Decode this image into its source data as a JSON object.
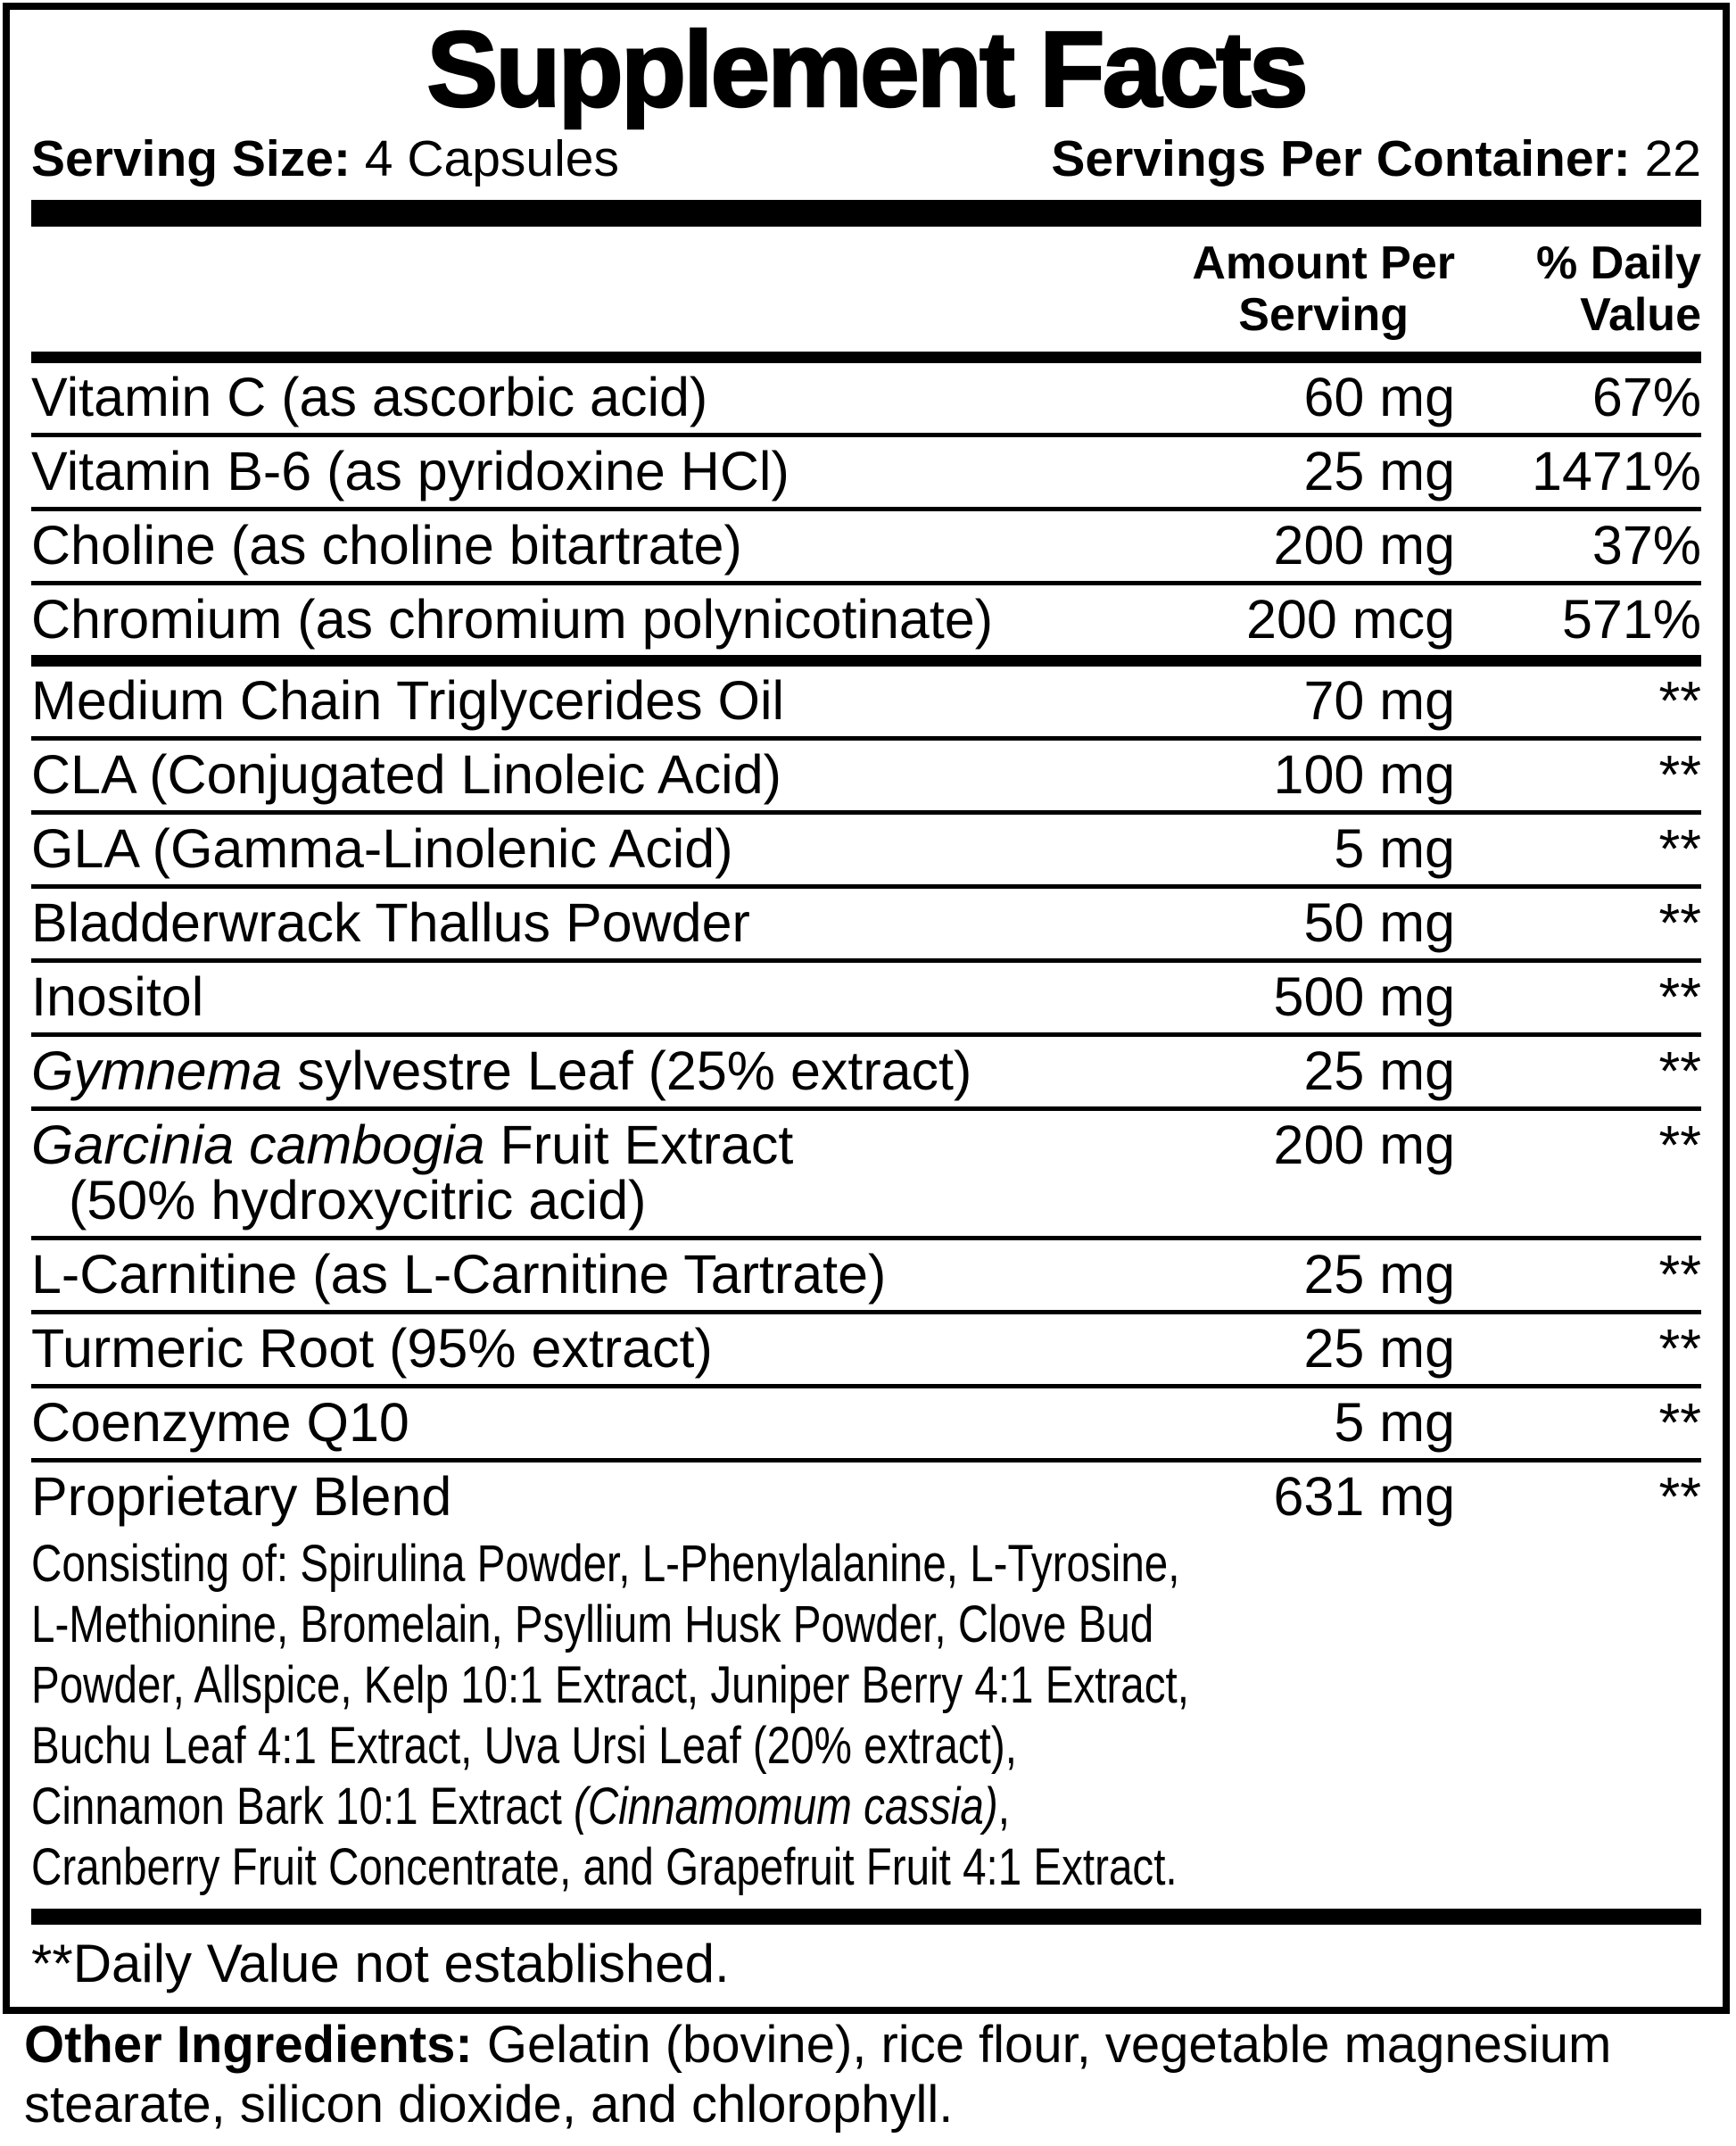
{
  "title": "Supplement Facts",
  "serving": {
    "size_label": "Serving Size:",
    "size_value": "4 Capsules",
    "per_container_label": "Servings Per Container:",
    "per_container_value": "22"
  },
  "columns": {
    "amount_line1": "Amount Per",
    "amount_line2": "Serving",
    "dv_line1": "% Daily",
    "dv_line2": "Value"
  },
  "colors": {
    "text": "#000000",
    "background": "#ffffff"
  },
  "rows": [
    {
      "name": [
        {
          "t": "Vitamin C (as ascorbic acid)"
        }
      ],
      "amount": "60 mg",
      "dv": "67%",
      "rule_after": "thin"
    },
    {
      "name": [
        {
          "t": "Vitamin B-6 (as pyridoxine HCl)"
        }
      ],
      "amount": "25 mg",
      "dv": "1471%",
      "rule_after": "thin"
    },
    {
      "name": [
        {
          "t": "Choline (as choline bitartrate)"
        }
      ],
      "amount": "200 mg",
      "dv": "37%",
      "rule_after": "thin"
    },
    {
      "name": [
        {
          "t": "Chromium (as chromium polynicotinate)"
        }
      ],
      "amount": "200 mcg",
      "dv": "571%",
      "rule_after": "medium"
    },
    {
      "name": [
        {
          "t": "Medium Chain Triglycerides Oil"
        }
      ],
      "amount": "70 mg",
      "dv": "**",
      "rule_after": "thin"
    },
    {
      "name": [
        {
          "t": "CLA (Conjugated Linoleic Acid)"
        }
      ],
      "amount": "100 mg",
      "dv": "**",
      "rule_after": "thin"
    },
    {
      "name": [
        {
          "t": "GLA (Gamma-Linolenic Acid)"
        }
      ],
      "amount": "5 mg",
      "dv": "**",
      "rule_after": "thin"
    },
    {
      "name": [
        {
          "t": "Bladderwrack Thallus Powder"
        }
      ],
      "amount": "50 mg",
      "dv": "**",
      "rule_after": "thin"
    },
    {
      "name": [
        {
          "t": "Inositol"
        }
      ],
      "amount": "500 mg",
      "dv": "**",
      "rule_after": "thin"
    },
    {
      "name": [
        {
          "t": "Gymnema",
          "i": true
        },
        {
          "t": " sylvestre Leaf (25% extract)"
        }
      ],
      "amount": "25 mg",
      "dv": "**",
      "rule_after": "thin"
    },
    {
      "name": [
        {
          "t": "Garcinia cambogia",
          "i": true
        },
        {
          "t": " Fruit Extract"
        }
      ],
      "name_line2": "(50% hydroxycitric acid)",
      "amount": "200 mg",
      "dv": "**",
      "rule_after": "thin"
    },
    {
      "name": [
        {
          "t": "L-Carnitine (as L-Carnitine Tartrate)"
        }
      ],
      "amount": "25 mg",
      "dv": "**",
      "rule_after": "thin"
    },
    {
      "name": [
        {
          "t": "Turmeric Root (95% extract)"
        }
      ],
      "amount": "25 mg",
      "dv": "**",
      "rule_after": "thin"
    },
    {
      "name": [
        {
          "t": "Coenzyme Q10"
        }
      ],
      "amount": "5 mg",
      "dv": "**",
      "rule_after": "thin"
    },
    {
      "name": [
        {
          "t": "Proprietary Blend"
        }
      ],
      "amount": "631 mg",
      "dv": "**",
      "rule_after": "none"
    }
  ],
  "proprietary_blend": {
    "lines": [
      [
        {
          "t": "Consisting of: Spirulina Powder, L-Phenylalanine, L-Tyrosine,"
        }
      ],
      [
        {
          "t": "L-Methionine, Bromelain, Psyllium Husk Powder, Clove Bud"
        }
      ],
      [
        {
          "t": "Powder, Allspice, Kelp 10:1 Extract, Juniper Berry 4:1 Extract,"
        }
      ],
      [
        {
          "t": "Buchu Leaf 4:1 Extract, Uva Ursi Leaf (20% extract),"
        }
      ],
      [
        {
          "t": "Cinnamon Bark 10:1 Extract "
        },
        {
          "t": "(Cinnamomum cassia)",
          "i": true
        },
        {
          "t": ","
        }
      ],
      [
        {
          "t": "Cranberry Fruit Concentrate, and Grapefruit Fruit 4:1 Extract."
        }
      ]
    ]
  },
  "footnote": "**Daily Value not established.",
  "other_ingredients": {
    "label": "Other Ingredients:",
    "text": " Gelatin (bovine), rice flour, vegetable magnesium stearate, silicon dioxide, and chlorophyll."
  }
}
